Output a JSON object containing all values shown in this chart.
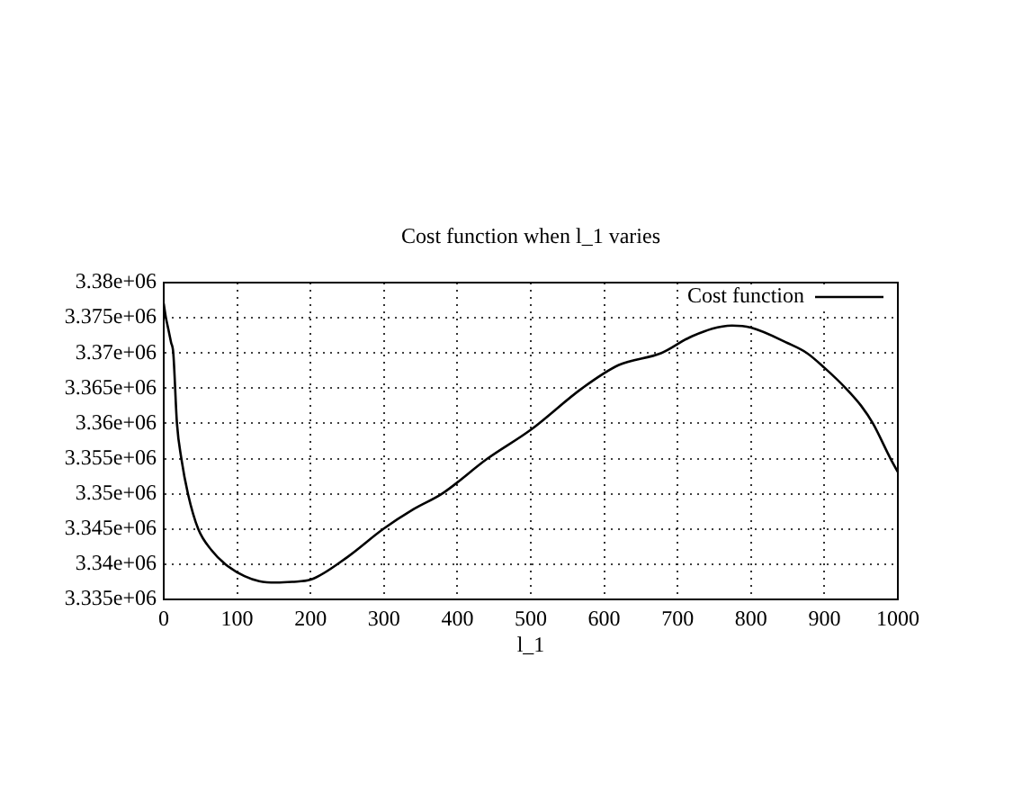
{
  "chart_data": {
    "type": "line",
    "title": "Cost function when l_1 varies",
    "xlabel": "l_1",
    "x": [
      0,
      3,
      6,
      10,
      13,
      18,
      24,
      33,
      47,
      65,
      84,
      110,
      130,
      153,
      175,
      200,
      250,
      299,
      340,
      379,
      441,
      500,
      570,
      620,
      678,
      720,
      774,
      800,
      850,
      876,
      900,
      929,
      950,
      966,
      990,
      1000
    ],
    "series": [
      {
        "name": "Cost function",
        "color": "#000000",
        "values": [
          3377000,
          3375000,
          3373500,
          3371500,
          3370000,
          3360000,
          3355000,
          3350000,
          3345000,
          3342000,
          3340000,
          3338300,
          3337600,
          3337400,
          3337500,
          3337800,
          3341000,
          3345000,
          3347800,
          3350000,
          3355000,
          3359100,
          3365000,
          3368300,
          3370000,
          3372400,
          3373900,
          3373600,
          3371400,
          3370000,
          3367900,
          3365000,
          3362500,
          3360000,
          3355000,
          3353100
        ]
      }
    ],
    "xlim": [
      0,
      1000
    ],
    "xticks": [
      0,
      100,
      200,
      300,
      400,
      500,
      600,
      700,
      800,
      900,
      1000
    ],
    "ylim": [
      3335000,
      3380000
    ],
    "yticks": [
      {
        "value": 3335000,
        "label": "3.335e+06"
      },
      {
        "value": 3340000,
        "label": "3.34e+06"
      },
      {
        "value": 3345000,
        "label": "3.345e+06"
      },
      {
        "value": 3350000,
        "label": "3.35e+06"
      },
      {
        "value": 3355000,
        "label": "3.355e+06"
      },
      {
        "value": 3360000,
        "label": "3.36e+06"
      },
      {
        "value": 3365000,
        "label": "3.365e+06"
      },
      {
        "value": 3370000,
        "label": "3.37e+06"
      },
      {
        "value": 3375000,
        "label": "3.375e+06"
      },
      {
        "value": 3380000,
        "label": "3.38e+06"
      }
    ],
    "grid": true,
    "legend": "top right",
    "marker": "none",
    "line_style": "solid"
  }
}
